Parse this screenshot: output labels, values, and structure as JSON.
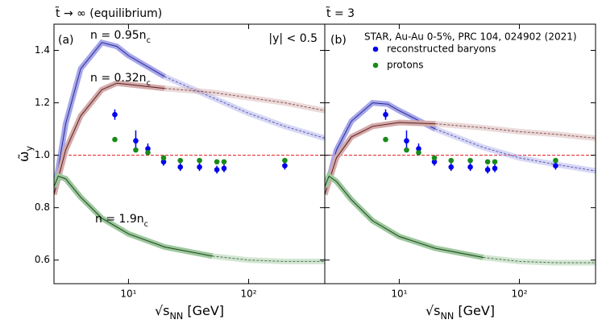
{
  "chart_data": [
    {
      "type": "line",
      "title": "t̃ → ∞ (equilibrium)",
      "xlog": true,
      "xlim": [
        2.4,
        430
      ],
      "ylim": [
        0.51,
        1.5
      ],
      "xticks": [
        {
          "value": 10,
          "label": "10¹"
        },
        {
          "value": 100,
          "label": "10²"
        }
      ],
      "yticks": [
        0.6,
        0.8,
        {
          "value": 1.0,
          "label": "1.0"
        },
        1.2,
        1.4
      ],
      "ytick_labels": true,
      "x_label": {
        "main": "√s",
        "sub": "NN",
        "rest": " [GeV]"
      },
      "y_label": {
        "main": "ω̃",
        "sub": "y"
      },
      "reference_line": {
        "y": 1.0,
        "color": "#e41a1c"
      },
      "annotations": [
        {
          "text": "(a)"
        },
        {
          "text": "|y| < 0.5"
        },
        {
          "text": "n = 0.95n",
          "sub": "c"
        },
        {
          "text": "n = 0.32n",
          "sub": "c"
        },
        {
          "text": "n = 1.9n",
          "sub": "c"
        }
      ],
      "curves": [
        {
          "color": "#a6a6ec",
          "edge_color": "#2b2b8c",
          "dashed_from": 20,
          "x": [
            2.4,
            3,
            4,
            6,
            8,
            10,
            20,
            50,
            100,
            200,
            430
          ],
          "values": [
            0.85,
            1.12,
            1.33,
            1.43,
            1.415,
            1.38,
            1.3,
            1.22,
            1.16,
            1.11,
            1.065
          ]
        },
        {
          "color": "#d4aaaa",
          "edge_color": "#5a2020",
          "dashed_from": 20,
          "x": [
            2.4,
            3,
            4,
            6,
            8,
            10,
            20,
            50,
            100,
            200,
            430
          ],
          "values": [
            0.85,
            1.02,
            1.15,
            1.25,
            1.275,
            1.27,
            1.255,
            1.24,
            1.22,
            1.2,
            1.17
          ]
        },
        {
          "color": "#9cc89c",
          "edge_color": "#1f401f",
          "dashed_from": 50,
          "x": [
            2.4,
            2.6,
            3,
            4,
            6,
            10,
            20,
            50,
            100,
            200,
            430
          ],
          "values": [
            0.88,
            0.92,
            0.91,
            0.84,
            0.76,
            0.7,
            0.65,
            0.615,
            0.6,
            0.595,
            0.595
          ]
        }
      ],
      "x": [
        7.7,
        11.5,
        14.5,
        19.6,
        27,
        39,
        54.4,
        62.4,
        200
      ],
      "series": [
        {
          "name": "reconstructed baryons",
          "color": "#0000ee",
          "values": [
            1.155,
            1.055,
            1.025,
            0.975,
            0.955,
            0.955,
            0.945,
            0.95,
            0.96
          ],
          "errors": [
            0.02,
            0.04,
            0.02,
            0.015,
            0.015,
            0.015,
            0.015,
            0.015,
            0.015
          ]
        },
        {
          "name": "protons",
          "color": "#1a8a1a",
          "values": [
            1.06,
            1.02,
            1.01,
            0.99,
            0.98,
            0.98,
            0.975,
            0.975,
            0.98
          ]
        }
      ]
    },
    {
      "type": "line",
      "title": "t̃ = 3",
      "xlog": true,
      "xlim": [
        2.4,
        430
      ],
      "ylim": [
        0.51,
        1.5
      ],
      "xticks": [
        {
          "value": 10,
          "label": "10¹"
        },
        {
          "value": 100,
          "label": "10²"
        }
      ],
      "yticks": [
        0.6,
        0.8,
        1.0,
        1.2,
        1.4
      ],
      "ytick_labels": false,
      "x_label": {
        "main": "√s",
        "sub": "NN",
        "rest": " [GeV]"
      },
      "reference_line": {
        "y": 1.0,
        "color": "#e41a1c"
      },
      "annotations": [
        {
          "text": "(b)"
        }
      ],
      "legend_title": "STAR, Au-Au 0-5%, PRC 104, 024902 (2021)",
      "curves": [
        {
          "color": "#a6a6ec",
          "edge_color": "#2b2b8c",
          "dashed_from": 20,
          "x": [
            2.4,
            3,
            4,
            6,
            8,
            10,
            20,
            50,
            100,
            200,
            430
          ],
          "values": [
            0.85,
            1.02,
            1.13,
            1.2,
            1.195,
            1.17,
            1.1,
            1.03,
            0.99,
            0.965,
            0.94
          ]
        },
        {
          "color": "#d4aaaa",
          "edge_color": "#5a2020",
          "dashed_from": 20,
          "x": [
            2.4,
            3,
            4,
            6,
            10,
            20,
            50,
            100,
            200,
            430
          ],
          "values": [
            0.85,
            0.99,
            1.07,
            1.11,
            1.125,
            1.12,
            1.105,
            1.09,
            1.08,
            1.065
          ]
        },
        {
          "color": "#9cc89c",
          "edge_color": "#1f401f",
          "dashed_from": 50,
          "x": [
            2.4,
            2.6,
            3,
            4,
            6,
            10,
            20,
            50,
            100,
            200,
            430
          ],
          "values": [
            0.88,
            0.92,
            0.9,
            0.83,
            0.75,
            0.69,
            0.645,
            0.61,
            0.595,
            0.59,
            0.59
          ]
        }
      ],
      "x": [
        7.7,
        11.5,
        14.5,
        19.6,
        27,
        39,
        54.4,
        62.4,
        200
      ],
      "series": [
        {
          "name": "reconstructed baryons",
          "color": "#0000ee",
          "values": [
            1.155,
            1.055,
            1.025,
            0.975,
            0.955,
            0.955,
            0.945,
            0.95,
            0.96
          ],
          "errors": [
            0.02,
            0.04,
            0.02,
            0.015,
            0.015,
            0.015,
            0.015,
            0.015,
            0.015
          ]
        },
        {
          "name": "protons",
          "color": "#1a8a1a",
          "values": [
            1.06,
            1.02,
            1.01,
            0.99,
            0.98,
            0.98,
            0.975,
            0.975,
            0.98
          ]
        }
      ]
    }
  ]
}
